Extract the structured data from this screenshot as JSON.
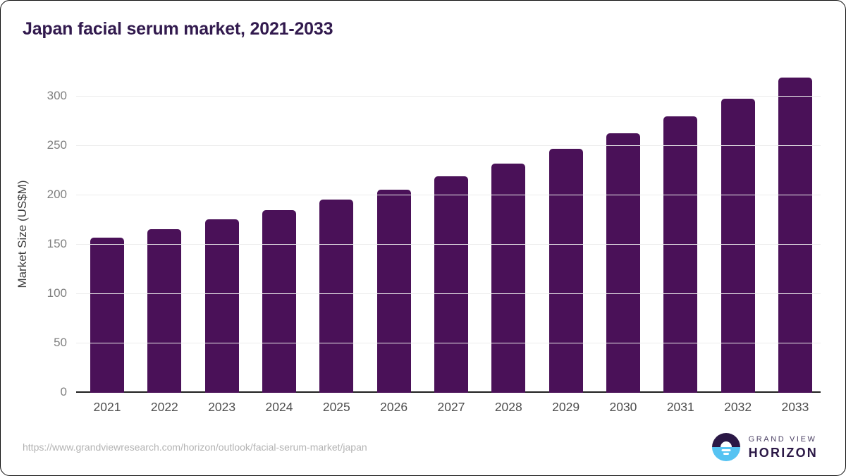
{
  "header": {
    "title": "Japan facial serum market, 2021-2033"
  },
  "chart_data": {
    "type": "bar",
    "title": "Japan facial serum market, 2021-2033",
    "categories": [
      "2021",
      "2022",
      "2023",
      "2024",
      "2025",
      "2026",
      "2027",
      "2028",
      "2029",
      "2030",
      "2031",
      "2032",
      "2033"
    ],
    "values": [
      157,
      166,
      176,
      185,
      196,
      206,
      219,
      232,
      247,
      263,
      280,
      298,
      319
    ],
    "xlabel": "",
    "ylabel": "Market Size (US$M)",
    "ylim": [
      0,
      321
    ],
    "yticks": [
      0,
      50,
      100,
      150,
      200,
      250,
      300
    ],
    "grid": "horizontal-only",
    "legend": "none",
    "bar_color": "#4a1158"
  },
  "footer": {
    "source_url": "https://www.grandviewresearch.com/horizon/outlook/facial-serum-market/japan",
    "logo": {
      "brand_line1": "GRAND VIEW",
      "brand_line2": "HORIZON"
    }
  },
  "colors": {
    "accent_bar": "#4a1158",
    "title_text": "#321a4e",
    "axis_text": "#3f3f3f",
    "tick_text": "#7f7f7f",
    "xtick_text": "#4f4f4f",
    "gridline": "#ececec",
    "baseline": "#1f1f1f",
    "url_text": "#b3b3b3",
    "logo_dark": "#2b1846",
    "logo_blue": "#56c3f2"
  }
}
